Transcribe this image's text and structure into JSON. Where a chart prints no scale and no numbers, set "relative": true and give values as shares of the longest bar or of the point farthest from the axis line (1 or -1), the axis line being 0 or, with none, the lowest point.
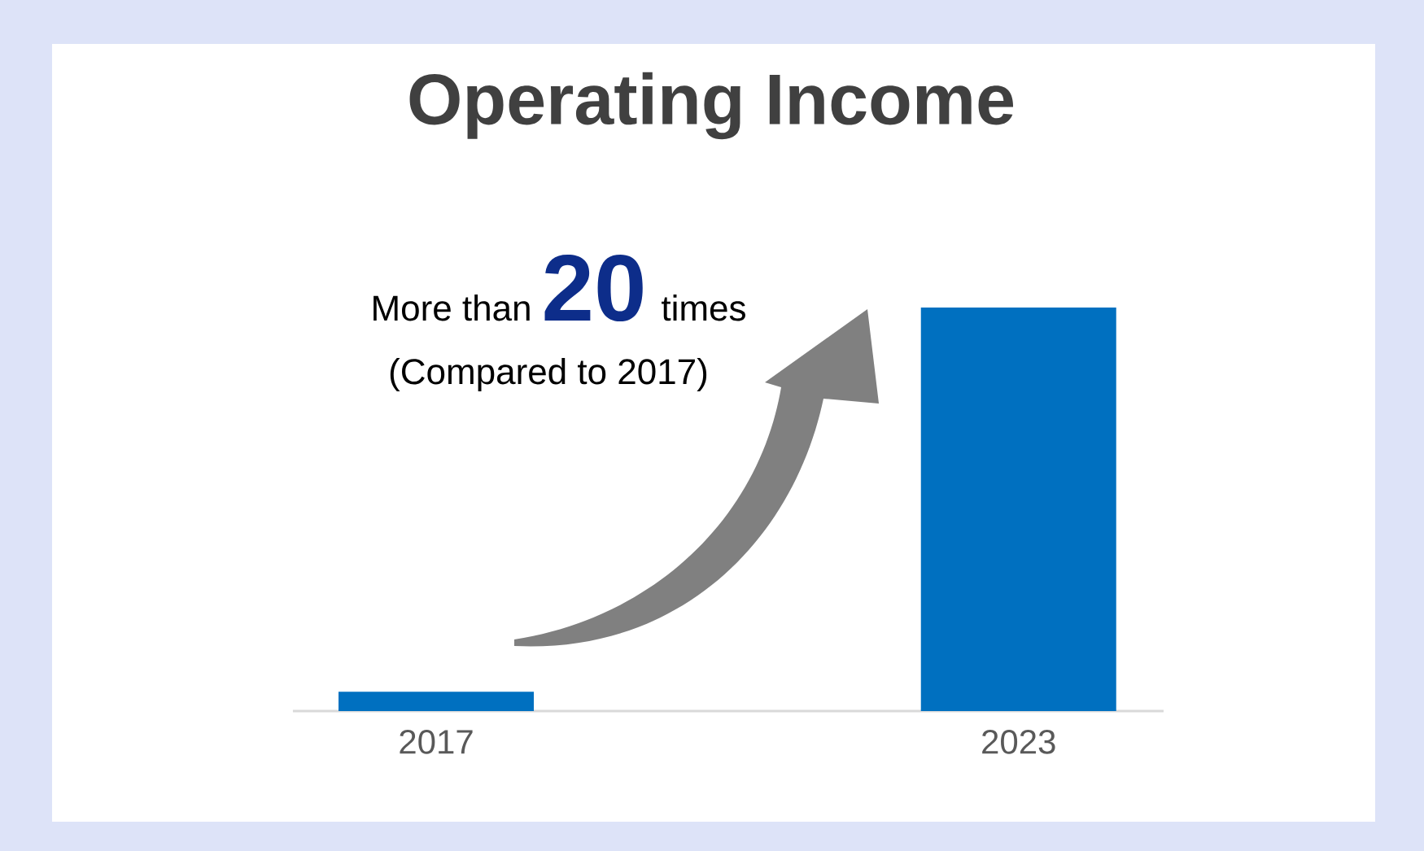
{
  "chart_data": {
    "type": "bar",
    "title": "Operating Income",
    "categories": [
      "2017",
      "2023"
    ],
    "values": [
      0.048,
      1
    ],
    "color": "#0070c0",
    "relative": true,
    "annotations": [
      "More than",
      "20",
      "times",
      "(Compared to 2017)"
    ]
  }
}
